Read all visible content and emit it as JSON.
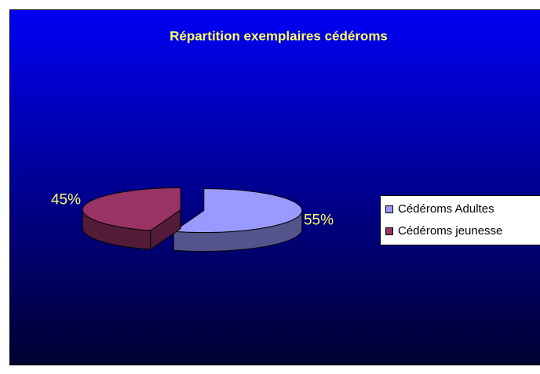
{
  "chart_data": {
    "type": "pie3d",
    "title": "Répartition exemplaires cédéroms",
    "categories": [
      "Cédéroms Adultes",
      "Cédéroms jeunesse"
    ],
    "values": [
      55,
      45
    ],
    "value_labels": [
      "55%",
      "45%"
    ],
    "colors": [
      "#9999ff",
      "#993366"
    ],
    "legend": "right"
  }
}
